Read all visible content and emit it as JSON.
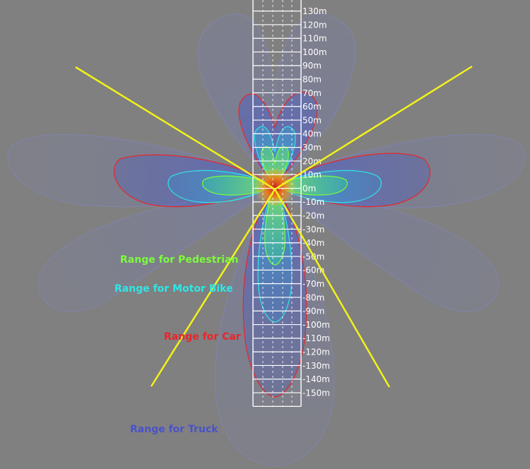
{
  "scale_labels": [
    "130m",
    "120m",
    "110m",
    "100m",
    "90m",
    "80m",
    "70m",
    "60m",
    "50m",
    "40m",
    "30m",
    "20m",
    "10m",
    "0m",
    "-10m",
    "-20m",
    "-30m",
    "-40m",
    "-50m",
    "-60m",
    "-70m",
    "-80m",
    "-90m",
    "-100m",
    "-110m",
    "-120m",
    "-130m",
    "-140m",
    "-150m"
  ],
  "legend": [
    {
      "key": "pedestrian",
      "label": "Range for Pedestrian",
      "color": "#7CFC3C"
    },
    {
      "key": "motorbike",
      "label": "Range for Motor Bike",
      "color": "#2FE6E6"
    },
    {
      "key": "car",
      "label": "Range for Car",
      "color": "#E8262A"
    },
    {
      "key": "truck",
      "label": "Range for Truck",
      "color": "#4A52C8"
    }
  ],
  "colors": {
    "background": "#808080",
    "fov_lines": "#F2F21A",
    "ruler_lines": "#ffffff",
    "ruler_labels": "#ffffff",
    "hotspot": "#F5A623"
  }
}
